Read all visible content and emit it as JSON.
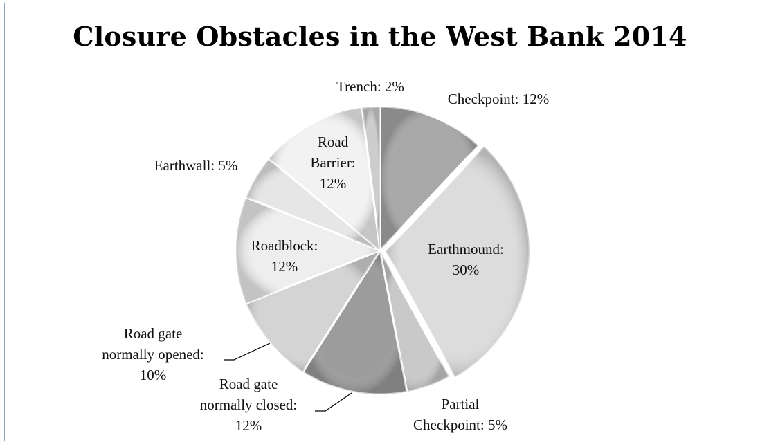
{
  "chart_data": {
    "type": "pie",
    "title": "Closure Obstacles in the West Bank 2014",
    "slices": [
      {
        "label": [
          "Checkpoint: 12%"
        ],
        "value": 12,
        "color": "#a8a8a8"
      },
      {
        "label": [
          "Earthmound:",
          "30%"
        ],
        "value": 30,
        "color": "#dcdcdc"
      },
      {
        "label": [
          "Partial",
          "Checkpoint: 5%"
        ],
        "value": 5,
        "color": "#c9c9c9"
      },
      {
        "label": [
          "Road gate",
          "normally closed:",
          "12%"
        ],
        "value": 12,
        "color": "#9c9c9c"
      },
      {
        "label": [
          "Road gate",
          "normally opened:",
          "10%"
        ],
        "value": 10,
        "color": "#d4d4d4"
      },
      {
        "label": [
          "Roadblock:",
          "12%"
        ],
        "value": 12,
        "color": "#eeeeee"
      },
      {
        "label": [
          "Earthwall: 5%"
        ],
        "value": 5,
        "color": "#e6e6e6"
      },
      {
        "label": [
          "Road",
          "Barrier:",
          "12%"
        ],
        "value": 12,
        "color": "#f2f2f2"
      },
      {
        "label": [
          "Trench: 2%"
        ],
        "value": 2,
        "color": "#cdcdcd"
      }
    ]
  }
}
